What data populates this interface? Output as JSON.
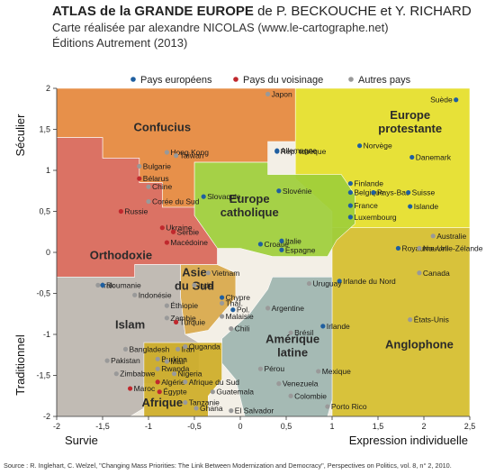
{
  "header": {
    "title_bold": "ATLAS de la GRANDE EUROPE",
    "title_rest": " de P. BECKOUCHE et Y. RICHARD",
    "line2": "Carte réalisée par alexandre NICOLAS (www.le-cartographe.net)",
    "line3": "Éditions Autrement (2013)"
  },
  "source": "Source :  R. Inglehart, C. Welzel, \"Changing Mass Priorities: The Link Between Modernization and Democracy\", Perspectives on Politics, vol. 8, n° 2, 2010.",
  "colors": {
    "europeen": "#1f5fa0",
    "voisinage": "#c0282d",
    "autre": "#999999",
    "confucius": "#e7893d",
    "orthodoxie": "#d9685a",
    "protestante": "#e7e02a",
    "catholique": "#9fcf3a",
    "anglophone": "#d6bf2d",
    "asie_sud": "#d9a94a",
    "islam": "#bdb7b0",
    "afrique": "#cfad27",
    "amerique": "#9fb6b0"
  },
  "chart_data": {
    "type": "scatter",
    "xlabel_left": "Survie",
    "xlabel_right": "Expression individuelle",
    "ylabel_top": "Séculier",
    "ylabel_bottom": "Traditionnel",
    "xlim": [
      -2,
      2.5
    ],
    "ylim": [
      -2,
      2
    ],
    "xticks": [
      "-2",
      "-1,5",
      "-1",
      "-0,5",
      "0",
      "0,5",
      "1",
      "1,5",
      "2",
      "2,5"
    ],
    "yticks": [
      "2",
      "1,5",
      "1",
      "0,5",
      "0",
      "-0,5",
      "-1",
      "-1,5",
      "-2"
    ],
    "legend": [
      {
        "label": "Pays européens",
        "group": "eu"
      },
      {
        "label": "Pays du voisinage",
        "group": "nb"
      },
      {
        "label": "Autres pays",
        "group": "ot"
      }
    ],
    "zones": [
      {
        "name": "Confucius",
        "color": "confucius",
        "label_at": [
          -0.85,
          1.48
        ]
      },
      {
        "name": "Orthodoxie",
        "color": "orthodoxie",
        "label_at": [
          -1.3,
          -0.08
        ]
      },
      {
        "name": "Europe protestante",
        "color": "protestante",
        "label_at": [
          1.85,
          1.55
        ]
      },
      {
        "name": "Europe catholique",
        "color": "catholique",
        "label_at": [
          0.1,
          0.53
        ]
      },
      {
        "name": "Anglophone",
        "color": "anglophone",
        "label_at": [
          1.95,
          -1.17
        ]
      },
      {
        "name": "Asie du Sud",
        "color": "asie_sud",
        "label_at": [
          -0.5,
          -0.37
        ]
      },
      {
        "name": "Islam",
        "color": "islam",
        "label_at": [
          -1.2,
          -0.93
        ]
      },
      {
        "name": "Afrique",
        "color": "afrique",
        "label_at": [
          -0.85,
          -1.88
        ]
      },
      {
        "name": "Amérique latine",
        "color": "amerique",
        "label_at": [
          0.57,
          -1.18
        ]
      }
    ],
    "points": [
      {
        "name": "Japon",
        "x": 0.3,
        "y": 1.93,
        "g": "ot"
      },
      {
        "name": "Suède",
        "x": 2.35,
        "y": 1.86,
        "g": "eu"
      },
      {
        "name": "Allemagne",
        "x": 0.4,
        "y": 1.24,
        "g": "eu"
      },
      {
        "name": "Norvège",
        "x": 1.3,
        "y": 1.3,
        "g": "eu"
      },
      {
        "name": "Rép. tchèque",
        "x": 0.4,
        "y": 1.23,
        "g": "eu"
      },
      {
        "name": "Danemark",
        "x": 1.87,
        "y": 1.16,
        "g": "eu"
      },
      {
        "name": "Hong Kong",
        "x": -0.8,
        "y": 1.22,
        "g": "ot"
      },
      {
        "name": "Taïwan",
        "x": -0.7,
        "y": 1.18,
        "g": "ot"
      },
      {
        "name": "Bulgarie",
        "x": -1.1,
        "y": 1.05,
        "g": "ot"
      },
      {
        "name": "Bélarus",
        "x": -1.1,
        "y": 0.9,
        "g": "nb"
      },
      {
        "name": "Chine",
        "x": -1.0,
        "y": 0.8,
        "g": "ot"
      },
      {
        "name": "Corée du Sud",
        "x": -1.0,
        "y": 0.62,
        "g": "ot"
      },
      {
        "name": "Russie",
        "x": -1.3,
        "y": 0.5,
        "g": "nb"
      },
      {
        "name": "Slovaquie",
        "x": -0.4,
        "y": 0.68,
        "g": "eu"
      },
      {
        "name": "Slovénie",
        "x": 0.42,
        "y": 0.75,
        "g": "eu"
      },
      {
        "name": "Finlande",
        "x": 1.2,
        "y": 0.84,
        "g": "eu"
      },
      {
        "name": "Belgique",
        "x": 1.2,
        "y": 0.73,
        "g": "eu"
      },
      {
        "name": "Pays-Bas",
        "x": 1.45,
        "y": 0.73,
        "g": "eu"
      },
      {
        "name": "Suisse",
        "x": 1.83,
        "y": 0.73,
        "g": "eu"
      },
      {
        "name": "France",
        "x": 1.2,
        "y": 0.57,
        "g": "eu"
      },
      {
        "name": "Islande",
        "x": 1.85,
        "y": 0.56,
        "g": "eu"
      },
      {
        "name": "Luxembourg",
        "x": 1.2,
        "y": 0.43,
        "g": "eu"
      },
      {
        "name": "Ukraine",
        "x": -0.85,
        "y": 0.3,
        "g": "nb"
      },
      {
        "name": "Serbie",
        "x": -0.73,
        "y": 0.25,
        "g": "nb"
      },
      {
        "name": "Macédoine",
        "x": -0.8,
        "y": 0.12,
        "g": "nb"
      },
      {
        "name": "Croatie",
        "x": 0.22,
        "y": 0.1,
        "g": "eu"
      },
      {
        "name": "Italie",
        "x": 0.45,
        "y": 0.14,
        "g": "eu"
      },
      {
        "name": "Espagne",
        "x": 0.45,
        "y": 0.03,
        "g": "eu"
      },
      {
        "name": "Australie",
        "x": 2.1,
        "y": 0.2,
        "g": "ot"
      },
      {
        "name": "Royaume-Uni",
        "x": 1.72,
        "y": 0.05,
        "g": "eu"
      },
      {
        "name": "Nouvelle-Zélande",
        "x": 1.95,
        "y": 0.05,
        "g": "ot"
      },
      {
        "name": "Canada",
        "x": 1.95,
        "y": -0.25,
        "g": "ot"
      },
      {
        "name": "Irlande du Nord",
        "x": 1.08,
        "y": -0.35,
        "g": "eu"
      },
      {
        "name": "Vietnam",
        "x": -0.35,
        "y": -0.25,
        "g": "ot"
      },
      {
        "name": "Irak",
        "x": -1.55,
        "y": -0.4,
        "g": "ot"
      },
      {
        "name": "Roumanie",
        "x": -1.5,
        "y": -0.4,
        "g": "eu"
      },
      {
        "name": "Inde",
        "x": -0.5,
        "y": -0.4,
        "g": "ot"
      },
      {
        "name": "Chypre",
        "x": -0.2,
        "y": -0.55,
        "g": "eu"
      },
      {
        "name": "Uruguay",
        "x": 0.75,
        "y": -0.38,
        "g": "ot"
      },
      {
        "name": "Indonésie",
        "x": -1.15,
        "y": -0.52,
        "g": "ot"
      },
      {
        "name": "Éthiopie",
        "x": -0.8,
        "y": -0.65,
        "g": "ot"
      },
      {
        "name": "Thaï.",
        "x": -0.2,
        "y": -0.62,
        "g": "ot"
      },
      {
        "name": "Pol.",
        "x": -0.08,
        "y": -0.7,
        "g": "eu"
      },
      {
        "name": "Argentine",
        "x": 0.3,
        "y": -0.68,
        "g": "ot"
      },
      {
        "name": "Zambie",
        "x": -0.8,
        "y": -0.8,
        "g": "ot"
      },
      {
        "name": "Malaisie",
        "x": -0.2,
        "y": -0.78,
        "g": "ot"
      },
      {
        "name": "Turquie",
        "x": -0.7,
        "y": -0.85,
        "g": "nb"
      },
      {
        "name": "Chili",
        "x": -0.1,
        "y": -0.93,
        "g": "ot"
      },
      {
        "name": "Brésil",
        "x": 0.55,
        "y": -0.98,
        "g": "ot"
      },
      {
        "name": "Irlande",
        "x": 0.9,
        "y": -0.9,
        "g": "eu"
      },
      {
        "name": "États-Unis",
        "x": 1.85,
        "y": -0.82,
        "g": "ot"
      },
      {
        "name": "Bangladesh",
        "x": -1.25,
        "y": -1.18,
        "g": "ot"
      },
      {
        "name": "Iran",
        "x": -0.68,
        "y": -1.18,
        "g": "ot"
      },
      {
        "name": "Ouganda",
        "x": -0.6,
        "y": -1.15,
        "g": "ot"
      },
      {
        "name": "Pakistan",
        "x": -1.45,
        "y": -1.32,
        "g": "ot"
      },
      {
        "name": "Burkina",
        "x": -0.9,
        "y": -1.3,
        "g": "ot"
      },
      {
        "name": "Mali",
        "x": -0.8,
        "y": -1.33,
        "g": "ot"
      },
      {
        "name": "Rwanda",
        "x": -0.9,
        "y": -1.42,
        "g": "ot"
      },
      {
        "name": "Nigeria",
        "x": -0.72,
        "y": -1.48,
        "g": "ot"
      },
      {
        "name": "Zimbabwe",
        "x": -1.35,
        "y": -1.48,
        "g": "ot"
      },
      {
        "name": "Pérou",
        "x": 0.22,
        "y": -1.42,
        "g": "ot"
      },
      {
        "name": "Mexique",
        "x": 0.85,
        "y": -1.45,
        "g": "ot"
      },
      {
        "name": "Algérie",
        "x": -0.9,
        "y": -1.58,
        "g": "nb"
      },
      {
        "name": "Afrique du Sud",
        "x": -0.6,
        "y": -1.58,
        "g": "ot"
      },
      {
        "name": "Venezuela",
        "x": 0.42,
        "y": -1.6,
        "g": "ot"
      },
      {
        "name": "Maroc",
        "x": -1.2,
        "y": -1.66,
        "g": "nb"
      },
      {
        "name": "Égypte",
        "x": -0.88,
        "y": -1.7,
        "g": "nb"
      },
      {
        "name": "Guatemala",
        "x": -0.3,
        "y": -1.7,
        "g": "ot"
      },
      {
        "name": "Colombie",
        "x": 0.55,
        "y": -1.75,
        "g": "ot"
      },
      {
        "name": "Tanzanie",
        "x": -0.6,
        "y": -1.83,
        "g": "ot"
      },
      {
        "name": "Porto Rico",
        "x": 0.95,
        "y": -1.88,
        "g": "ot"
      },
      {
        "name": "Ghana",
        "x": -0.48,
        "y": -1.9,
        "g": "ot"
      },
      {
        "name": "El Salvador",
        "x": -0.1,
        "y": -1.93,
        "g": "ot"
      }
    ]
  }
}
